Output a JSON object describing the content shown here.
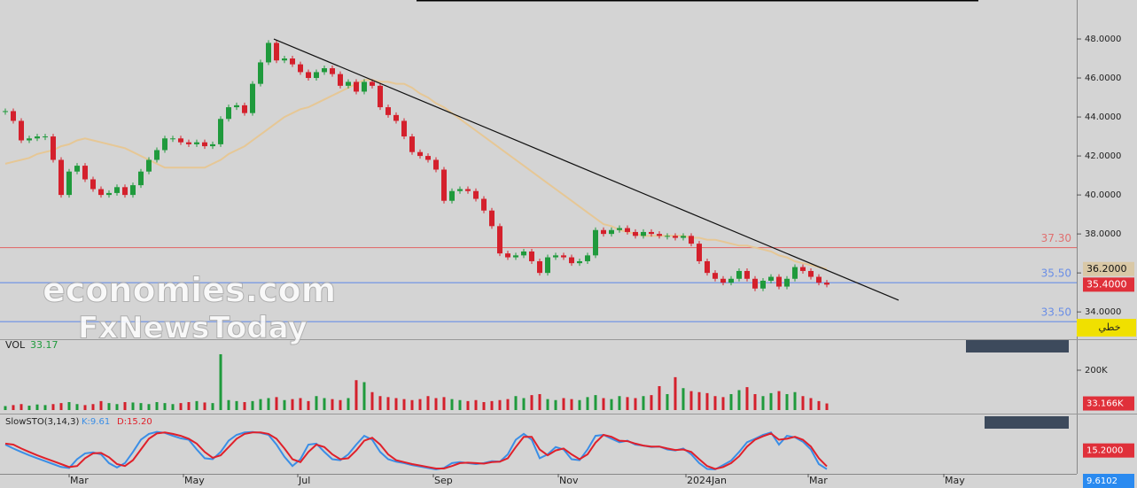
{
  "chart_data": [
    {
      "type": "candlestick",
      "watermarks": [
        "economies.com",
        "FxNewsToday"
      ],
      "x": [
        -24,
        -21,
        -18,
        -15,
        -12,
        -9,
        -6,
        -3,
        0,
        3,
        6,
        9,
        12,
        15,
        18,
        21,
        24,
        27,
        30,
        33,
        36,
        39,
        42,
        45,
        48,
        51,
        54,
        57,
        60,
        63,
        66,
        69,
        72,
        75,
        78,
        81,
        84,
        87,
        90,
        93,
        96,
        99,
        102,
        105,
        108,
        111,
        114,
        117,
        120,
        123,
        126,
        129,
        132,
        135,
        138,
        141,
        144,
        147,
        150,
        153,
        156,
        159,
        162,
        165,
        168,
        171,
        174,
        177,
        180,
        183,
        186,
        189,
        192,
        195,
        198,
        201,
        204,
        207,
        210,
        213,
        216,
        219,
        222,
        225,
        228,
        231,
        234,
        237,
        240,
        243,
        246,
        249,
        252,
        255,
        258,
        261,
        264,
        267,
        270,
        273,
        276,
        279,
        282,
        285
      ],
      "xlim": [
        -26,
        377
      ],
      "xticks": [
        {
          "value": 0,
          "label": "Mar"
        },
        {
          "value": 43,
          "label": "May"
        },
        {
          "value": 86,
          "label": "Jul"
        },
        {
          "value": 137,
          "label": "Sep"
        },
        {
          "value": 184,
          "label": "Nov"
        },
        {
          "value": 232,
          "label": "2024Jan"
        },
        {
          "value": 278,
          "label": "Mar"
        },
        {
          "value": 329,
          "label": "May"
        }
      ],
      "ylim": [
        32.6,
        50
      ],
      "yticks": [
        {
          "value": 34,
          "label": "34.0000"
        },
        {
          "value": 36,
          "label": "36.0000"
        },
        {
          "value": 38,
          "label": "38.0000"
        },
        {
          "value": 40,
          "label": "40.0000"
        },
        {
          "value": 42,
          "label": "42.0000"
        },
        {
          "value": 44,
          "label": "44.0000"
        },
        {
          "value": 46,
          "label": "46.0000"
        },
        {
          "value": 48,
          "label": "48.0000"
        }
      ],
      "values": [
        44.3,
        43.8,
        42.8,
        42.9,
        43.0,
        43.0,
        41.8,
        40.0,
        41.2,
        41.5,
        40.8,
        40.3,
        40.0,
        40.1,
        40.4,
        40.0,
        40.5,
        41.2,
        41.8,
        42.3,
        42.9,
        42.9,
        42.7,
        42.6,
        42.7,
        42.5,
        42.6,
        43.9,
        44.5,
        44.6,
        44.2,
        45.7,
        46.8,
        47.8,
        46.9,
        47.0,
        46.7,
        46.3,
        46.0,
        46.3,
        46.5,
        46.2,
        45.6,
        45.8,
        45.3,
        45.8,
        45.6,
        44.5,
        44.1,
        43.8,
        43.0,
        42.2,
        42.0,
        41.8,
        41.3,
        39.7,
        40.2,
        40.3,
        40.2,
        39.8,
        39.2,
        38.4,
        37.0,
        36.8,
        36.9,
        37.1,
        36.6,
        36.0,
        36.8,
        36.9,
        36.8,
        36.5,
        36.6,
        36.9,
        38.2,
        38.0,
        38.2,
        38.3,
        38.1,
        37.9,
        38.1,
        38.0,
        37.9,
        37.9,
        37.8,
        37.9,
        37.5,
        36.6,
        36.0,
        35.7,
        35.5,
        35.7,
        36.1,
        35.7,
        35.2,
        35.6,
        35.8,
        35.3,
        35.7,
        36.3,
        36.1,
        35.8,
        35.5,
        35.4
      ],
      "up_color": "#1f9a3c",
      "down_color": "#d4202c",
      "ma": {
        "color": "#e6c795",
        "values": [
          41.6,
          41.7,
          41.8,
          41.9,
          42.1,
          42.2,
          42.3,
          42.5,
          42.6,
          42.8,
          42.9,
          42.8,
          42.7,
          42.6,
          42.5,
          42.4,
          42.2,
          42.0,
          41.8,
          41.6,
          41.4,
          41.4,
          41.4,
          41.4,
          41.4,
          41.4,
          41.6,
          41.8,
          42.1,
          42.3,
          42.5,
          42.8,
          43.1,
          43.4,
          43.7,
          44.0,
          44.2,
          44.4,
          44.5,
          44.7,
          44.9,
          45.1,
          45.3,
          45.5,
          45.7,
          45.9,
          45.9,
          45.8,
          45.8,
          45.7,
          45.7,
          45.5,
          45.2,
          45.0,
          44.7,
          44.5,
          44.2,
          43.9,
          43.6,
          43.3,
          43.0,
          42.7,
          42.4,
          42.1,
          41.8,
          41.5,
          41.2,
          40.9,
          40.6,
          40.3,
          40.0,
          39.7,
          39.4,
          39.1,
          38.8,
          38.5,
          38.4,
          38.2,
          38.1,
          38.0,
          37.9,
          37.9,
          37.9,
          37.9,
          37.9,
          37.9,
          37.8,
          37.8,
          37.7,
          37.7,
          37.6,
          37.5,
          37.4,
          37.4,
          37.3,
          37.2,
          37.1,
          36.9,
          36.8,
          36.6,
          36.5,
          36.4,
          36.3,
          36.2
        ]
      },
      "trendline": {
        "x": [
          77,
          312
        ],
        "y": [
          48.0,
          34.6
        ],
        "color": "#111111"
      },
      "levels": [
        {
          "value": 37.3,
          "label": "37.30",
          "color": "#e07070"
        },
        {
          "value": 35.5,
          "label": "35.50",
          "color": "#6a8ee6"
        },
        {
          "value": 33.5,
          "label": "33.50",
          "color": "#6a8ee6"
        }
      ],
      "price_tags": [
        {
          "value": 36.2,
          "label": "36.2000",
          "color": "#d9c8a6",
          "text_color": "#111111"
        },
        {
          "value": 35.4,
          "label": "35.4000",
          "color": "#e0303a",
          "text_color": "#ffffff"
        }
      ],
      "badge": "خطي"
    },
    {
      "type": "bar",
      "title": "VOL",
      "value_text": "33.17",
      "values": [
        20000,
        25000,
        30000,
        22000,
        28000,
        25000,
        30000,
        35000,
        40000,
        30000,
        25000,
        30000,
        45000,
        35000,
        30000,
        40000,
        38000,
        35000,
        30000,
        40000,
        35000,
        30000,
        35000,
        40000,
        45000,
        38000,
        35000,
        280000,
        50000,
        45000,
        40000,
        45000,
        55000,
        60000,
        65000,
        50000,
        55000,
        60000,
        45000,
        70000,
        60000,
        55000,
        50000,
        60000,
        150000,
        140000,
        90000,
        70000,
        65000,
        60000,
        55000,
        50000,
        55000,
        70000,
        60000,
        65000,
        55000,
        50000,
        45000,
        50000,
        40000,
        45000,
        50000,
        55000,
        70000,
        60000,
        75000,
        80000,
        55000,
        50000,
        60000,
        55000,
        50000,
        65000,
        75000,
        60000,
        55000,
        70000,
        65000,
        60000,
        70000,
        75000,
        120000,
        80000,
        165000,
        110000,
        95000,
        90000,
        85000,
        70000,
        65000,
        80000,
        100000,
        115000,
        80000,
        70000,
        85000,
        95000,
        80000,
        90000,
        70000,
        60000,
        45000,
        33166
      ],
      "ylim": [
        0,
        351000
      ],
      "yticks": [
        {
          "value": 200000,
          "label": "200K"
        }
      ],
      "tag": {
        "value": 33166,
        "label": "33.166K",
        "color": "#e0303a"
      }
    },
    {
      "type": "line",
      "title": "SlowSTO(3,14,3)",
      "ylim": [
        0,
        100
      ],
      "series": [
        {
          "name": "K:9.61",
          "color": "#3a8ee6",
          "values": [
            60,
            52,
            45,
            38,
            32,
            26,
            20,
            14,
            12,
            30,
            42,
            44,
            40,
            22,
            13,
            22,
            45,
            70,
            82,
            86,
            84,
            78,
            73,
            70,
            50,
            32,
            30,
            45,
            68,
            80,
            85,
            86,
            84,
            80,
            60,
            35,
            16,
            30,
            60,
            62,
            45,
            30,
            28,
            40,
            60,
            78,
            70,
            45,
            30,
            25,
            22,
            18,
            15,
            12,
            9,
            12,
            22,
            24,
            22,
            20,
            22,
            26,
            25,
            40,
            70,
            82,
            70,
            32,
            40,
            55,
            50,
            30,
            28,
            50,
            78,
            80,
            72,
            65,
            68,
            60,
            58,
            55,
            56,
            50,
            48,
            52,
            40,
            22,
            10,
            9,
            18,
            27,
            45,
            65,
            72,
            80,
            85,
            60,
            78,
            75,
            66,
            50,
            20,
            9.61
          ]
        },
        {
          "name": "D:15.20",
          "color": "#e0202a",
          "values": [
            62,
            60,
            52,
            45,
            38,
            32,
            26,
            20,
            14,
            16,
            32,
            42,
            43,
            34,
            20,
            16,
            28,
            50,
            72,
            83,
            85,
            82,
            78,
            72,
            62,
            45,
            33,
            38,
            55,
            72,
            82,
            85,
            85,
            82,
            72,
            52,
            30,
            24,
            45,
            60,
            55,
            40,
            30,
            32,
            48,
            68,
            74,
            60,
            40,
            28,
            24,
            20,
            17,
            14,
            11,
            11,
            16,
            22,
            23,
            22,
            21,
            24,
            25,
            32,
            55,
            76,
            76,
            50,
            38,
            48,
            52,
            40,
            30,
            40,
            64,
            80,
            76,
            68,
            67,
            62,
            58,
            56,
            56,
            52,
            49,
            50,
            45,
            30,
            16,
            10,
            14,
            22,
            36,
            56,
            70,
            77,
            83,
            70,
            72,
            76,
            70,
            56,
            32,
            15.2
          ]
        }
      ],
      "tags": [
        {
          "value": 15.2,
          "label": "15.2000",
          "color": "#e0303a"
        },
        {
          "value": 9.6102,
          "label": "9.6102",
          "color": "#2a8af0"
        }
      ]
    }
  ]
}
